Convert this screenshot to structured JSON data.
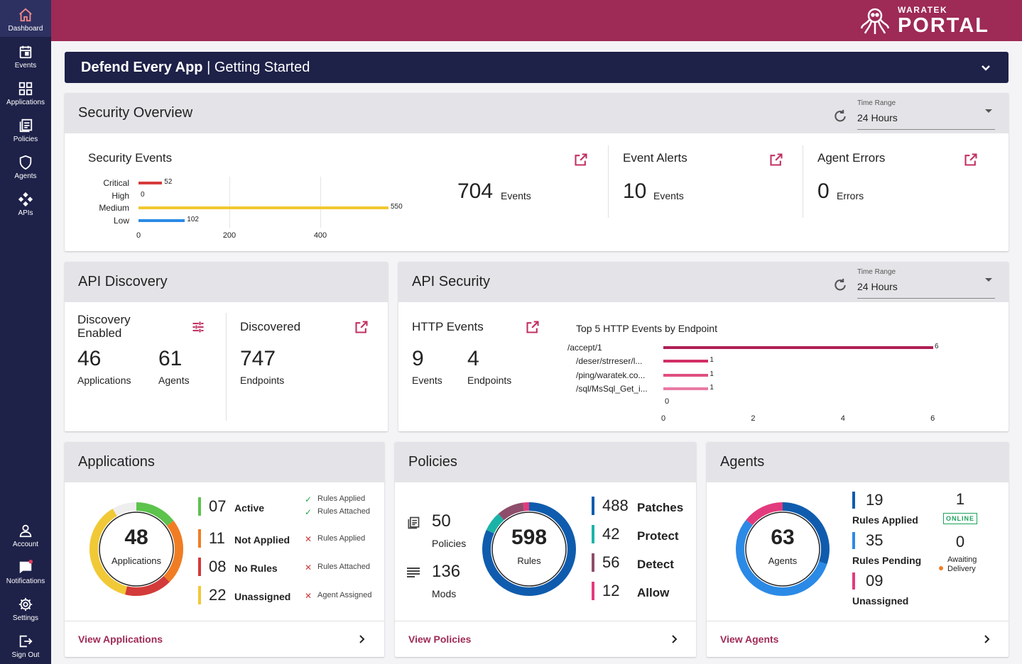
{
  "sidebar": {
    "top_items": [
      {
        "label": "Dashboard",
        "icon": "home-icon"
      },
      {
        "label": "Events",
        "icon": "calendar-icon"
      },
      {
        "label": "Applications",
        "icon": "grid-icon"
      },
      {
        "label": "Policies",
        "icon": "document-icon"
      },
      {
        "label": "Agents",
        "icon": "shield-icon"
      },
      {
        "label": "APIs",
        "icon": "api-icon"
      }
    ],
    "bottom_items": [
      {
        "label": "Account",
        "icon": "person-icon"
      },
      {
        "label": "Notifications",
        "icon": "chat-icon"
      },
      {
        "label": "Settings",
        "icon": "gear-icon"
      },
      {
        "label": "Sign Out",
        "icon": "sign-out-icon"
      }
    ]
  },
  "brand": {
    "small": "WARATEK",
    "big": "PORTAL"
  },
  "banner": {
    "bold": "Defend Every App",
    "rest": " | Getting Started"
  },
  "security_overview": {
    "title": "Security Overview",
    "time_range_label": "Time Range",
    "time_range_value": "24 Hours",
    "events": {
      "title": "Security Events",
      "total": "704",
      "total_unit": "Events"
    },
    "alerts": {
      "title": "Event Alerts",
      "value": "10",
      "unit": "Events"
    },
    "errors": {
      "title": "Agent Errors",
      "value": "0",
      "unit": "Errors"
    }
  },
  "security_chart": {
    "type": "bar",
    "orientation": "horizontal",
    "categories": [
      "Critical",
      "High",
      "Medium",
      "Low"
    ],
    "values": [
      52,
      0,
      550,
      102
    ],
    "colors": [
      "#d63b3b",
      "#e07a2a",
      "#f2c832",
      "#2b8ae6"
    ],
    "xlim": [
      0,
      600
    ],
    "ticks": [
      0,
      200,
      400
    ]
  },
  "api_discovery": {
    "title": "API Discovery",
    "enabled_title_1": "Discovery",
    "enabled_title_2": "Enabled",
    "applications_value": "46",
    "applications_label": "Applications",
    "agents_value": "61",
    "agents_label": "Agents",
    "discovered_title": "Discovered",
    "endpoints_value": "747",
    "endpoints_label": "Endpoints"
  },
  "api_security": {
    "title": "API Security",
    "time_range_label": "Time Range",
    "time_range_value": "24 Hours",
    "http_title": "HTTP Events",
    "events_value": "9",
    "events_label": "Events",
    "endpoints_value": "4",
    "endpoints_label": "Endpoints",
    "chart_title": "Top 5 HTTP Events by Endpoint"
  },
  "http_chart": {
    "type": "bar",
    "orientation": "horizontal",
    "categories": [
      "/accept/1",
      "/deser/strreser/l...",
      "/ping/waratek.co...",
      "/sql/MsSql_Get_i..."
    ],
    "values": [
      6,
      1,
      1,
      1
    ],
    "colors": [
      "#b01f55",
      "#d02f66",
      "#df4f80",
      "#e87aa3"
    ],
    "xlim": [
      0,
      6
    ],
    "ticks": [
      0,
      2,
      4,
      6
    ],
    "inner_tick": "0"
  },
  "applications": {
    "title": "Applications",
    "center_value": "48",
    "center_label": "Applications",
    "rows": [
      {
        "num": "07",
        "label": "Active",
        "color": "#5cc34c",
        "statuses": [
          {
            "mark": "✓",
            "text": "Rules Applied",
            "ok": true
          },
          {
            "mark": "✓",
            "text": "Rules Attached",
            "ok": true
          }
        ]
      },
      {
        "num": "11",
        "label": "Not Applied",
        "color": "#f07d24",
        "statuses": [
          {
            "mark": "✕",
            "text": "Rules Applied",
            "ok": false
          }
        ]
      },
      {
        "num": "08",
        "label": "No Rules",
        "color": "#d33a3a",
        "statuses": [
          {
            "mark": "✕",
            "text": "Rules Attached",
            "ok": false
          }
        ]
      },
      {
        "num": "22",
        "label": "Unassigned",
        "color": "#f1c936",
        "statuses": [
          {
            "mark": "✕",
            "text": "Agent Assigned",
            "ok": false
          }
        ]
      }
    ],
    "link": "View Applications"
  },
  "policies": {
    "title": "Policies",
    "policies_value": "50",
    "policies_label": "Policies",
    "mods_value": "136",
    "mods_label": "Mods",
    "center_value": "598",
    "center_label": "Rules",
    "rows": [
      {
        "num": "488",
        "label": "Patches",
        "color": "#0f5cae"
      },
      {
        "num": "42",
        "label": "Protect",
        "color": "#1bb3a8"
      },
      {
        "num": "56",
        "label": "Detect",
        "color": "#8e4d6a"
      },
      {
        "num": "12",
        "label": "Allow",
        "color": "#e23b7d"
      }
    ],
    "link": "View Policies"
  },
  "agents": {
    "title": "Agents",
    "center_value": "63",
    "center_label": "Agents",
    "rows": [
      {
        "num": "19",
        "label": "Rules Applied",
        "color": "#0f5cae"
      },
      {
        "num": "35",
        "label": "Rules Pending",
        "color": "#2b8ae6"
      },
      {
        "num": "09",
        "label": "Unassigned",
        "color": "#e23b7d"
      }
    ],
    "online_value": "1",
    "online_badge": "ONLINE",
    "awaiting_value": "0",
    "awaiting_label_1": "Awaiting",
    "awaiting_label_2": "Delivery",
    "link": "View Agents"
  }
}
